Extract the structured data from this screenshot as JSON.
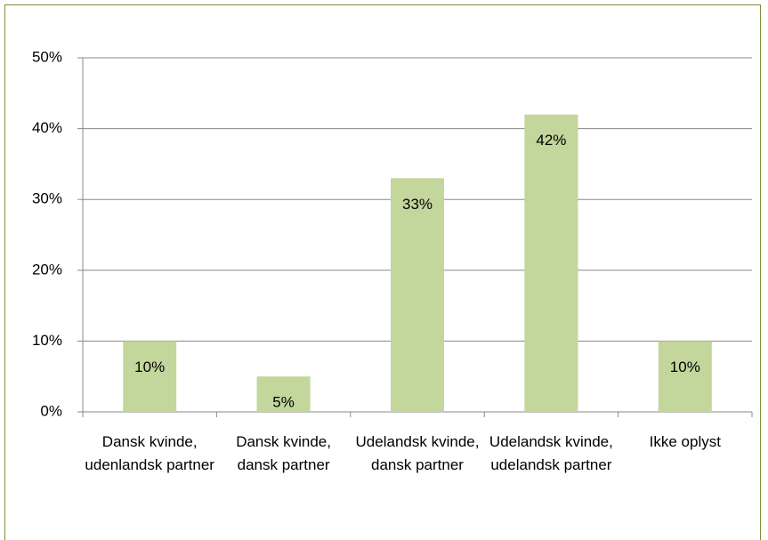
{
  "chart_data": {
    "type": "bar",
    "categories": [
      "Dansk kvinde, udenlandsk partner",
      "Dansk kvinde, dansk partner",
      "Udelandsk kvinde, dansk partner",
      "Udelandsk kvinde, udelandsk partner",
      "Ikke oplyst"
    ],
    "values": [
      10,
      5,
      33,
      42,
      10
    ],
    "value_labels": [
      "10%",
      "5%",
      "33%",
      "42%",
      "10%"
    ],
    "color": "#c3d69b",
    "ylim": [
      0,
      50
    ],
    "yticks": [
      {
        "value": 0,
        "label": "0%"
      },
      {
        "value": 10,
        "label": "10%"
      },
      {
        "value": 20,
        "label": "20%"
      },
      {
        "value": 30,
        "label": "30%"
      },
      {
        "value": 40,
        "label": "40%"
      },
      {
        "value": 50,
        "label": "50%"
      }
    ],
    "grid": true
  }
}
